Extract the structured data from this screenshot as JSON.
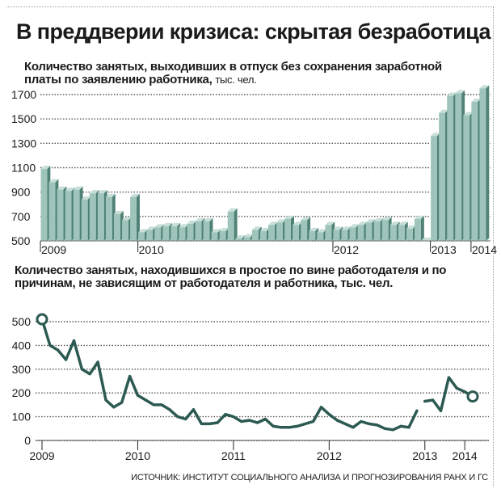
{
  "title": "В преддверии кризиса: скрытая безработица",
  "source": "ИСТОЧНИК: ИНСТИТУТ СОЦИАЛЬНОГО АНАЛИЗА И ПРОГНОЗИРОВАНИЯ РАНХ И ГС",
  "colors": {
    "bar_front": "#9ec4bb",
    "bar_side": "#4f8177",
    "bar_top": "#c8dfd9",
    "line": "#2c5a52",
    "grid": "#555555"
  },
  "chart_data": [
    {
      "type": "bar",
      "title": "Количество занятых, выходивших в отпуск без сохранения заработной платы по заявлению работника,",
      "unit": "тыс. чел.",
      "ylim": [
        500,
        1700
      ],
      "yticks": [
        500,
        700,
        900,
        1100,
        1300,
        1500,
        1700
      ],
      "grid": true,
      "xtick_labels": [
        {
          "label": "2009",
          "at": 0
        },
        {
          "label": "2010",
          "at": 12
        },
        {
          "label": "2012",
          "at": 36
        },
        {
          "label": "2013",
          "at": 48
        },
        {
          "label": "2014",
          "at": 53
        }
      ],
      "values": [
        1090,
        980,
        920,
        910,
        920,
        840,
        890,
        890,
        860,
        720,
        670,
        860,
        570,
        590,
        610,
        620,
        620,
        610,
        640,
        660,
        660,
        570,
        580,
        740,
        520,
        530,
        590,
        580,
        630,
        650,
        680,
        630,
        670,
        580,
        570,
        630,
        590,
        590,
        610,
        630,
        650,
        660,
        670,
        630,
        630,
        600,
        680,
        null,
        1360,
        1550,
        1690,
        1710,
        1530,
        1640,
        1750
      ]
    },
    {
      "type": "line",
      "title": "Количество занятых, находившихся в простое по вине работодателя и по причинам, не зависящим от работодателя и работника, тыс. чел.",
      "ylim": [
        0,
        500
      ],
      "yticks": [
        0,
        100,
        200,
        300,
        400,
        500
      ],
      "grid": true,
      "xtick_labels": [
        {
          "label": "2009",
          "at": 0
        },
        {
          "label": "2010",
          "at": 12
        },
        {
          "label": "2011",
          "at": 24
        },
        {
          "label": "2012",
          "at": 36
        },
        {
          "label": "2013",
          "at": 48
        },
        {
          "label": "2014",
          "at": 53
        }
      ],
      "values": [
        510,
        400,
        380,
        340,
        420,
        300,
        280,
        330,
        170,
        140,
        160,
        270,
        190,
        170,
        150,
        150,
        130,
        100,
        90,
        130,
        70,
        70,
        75,
        110,
        100,
        80,
        85,
        75,
        90,
        60,
        55,
        55,
        60,
        70,
        80,
        140,
        110,
        85,
        70,
        55,
        80,
        70,
        65,
        50,
        45,
        60,
        55,
        125,
        165,
        170,
        125,
        265,
        220,
        205,
        185
      ]
    }
  ]
}
